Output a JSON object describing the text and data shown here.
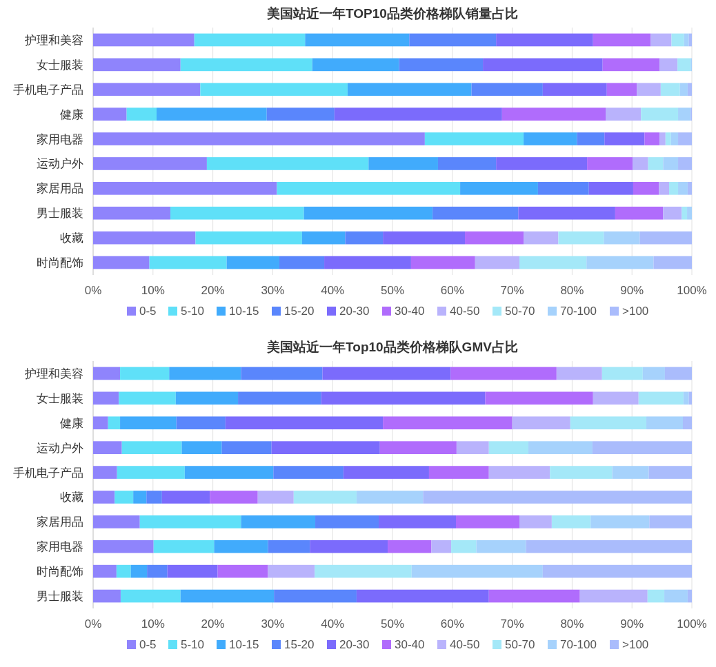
{
  "chart_data": [
    {
      "type": "bar",
      "title": "美国站近一年TOP10品类价格梯队销量占比",
      "orientation": "horizontal",
      "stacked": true,
      "grid": "x",
      "legend": "bottom",
      "categories": [
        "护理和美容",
        "女士服装",
        "手机电子产品",
        "健康",
        "家用电器",
        "运动户外",
        "家居用品",
        "男士服装",
        "收藏",
        "时尚配饰"
      ],
      "xlim": [
        0,
        100
      ],
      "xticks": [
        {
          "value": 0,
          "label": "0%"
        },
        {
          "value": 10,
          "label": "10%"
        },
        {
          "value": 20,
          "label": "20%"
        },
        {
          "value": 30,
          "label": "30%"
        },
        {
          "value": 40,
          "label": "40%"
        },
        {
          "value": 50,
          "label": "50%"
        },
        {
          "value": 60,
          "label": "60%"
        },
        {
          "value": 70,
          "label": "70%"
        },
        {
          "value": 80,
          "label": "80%"
        },
        {
          "value": 90,
          "label": "90%"
        },
        {
          "value": 100,
          "label": "100%"
        }
      ],
      "series": [
        {
          "name": "0-5",
          "color": "#8f84fc",
          "values": [
            16.9,
            14.6,
            17.9,
            5.6,
            55.4,
            19.0,
            30.7,
            12.9,
            17.1,
            9.4
          ]
        },
        {
          "name": "5-10",
          "color": "#5fe0f8",
          "values": [
            18.5,
            22.0,
            24.6,
            5.0,
            16.5,
            27.0,
            30.6,
            22.3,
            17.8,
            12.9
          ]
        },
        {
          "name": "10-15",
          "color": "#41abfc",
          "values": [
            17.4,
            14.5,
            20.7,
            18.4,
            8.9,
            11.6,
            13.0,
            21.5,
            7.2,
            8.8
          ]
        },
        {
          "name": "15-20",
          "color": "#5a86fc",
          "values": [
            14.5,
            14.0,
            11.9,
            11.3,
            4.6,
            9.7,
            8.5,
            14.3,
            6.3,
            7.5
          ]
        },
        {
          "name": "20-30",
          "color": "#7b6bfc",
          "values": [
            16.2,
            20.0,
            10.7,
            28.0,
            6.7,
            15.2,
            7.4,
            16.2,
            13.7,
            14.5
          ]
        },
        {
          "name": "30-40",
          "color": "#b06cfc",
          "values": [
            9.6,
            9.5,
            5.0,
            17.3,
            2.5,
            7.6,
            4.3,
            8.0,
            9.8,
            10.7
          ]
        },
        {
          "name": "40-50",
          "color": "#b9b3fc",
          "values": [
            3.5,
            3.0,
            4.0,
            5.9,
            1.0,
            2.6,
            1.7,
            3.1,
            5.8,
            7.4
          ]
        },
        {
          "name": "50-70",
          "color": "#a4e8f8",
          "values": [
            2.1,
            2.2,
            3.2,
            6.2,
            0.9,
            2.5,
            1.5,
            0.9,
            7.6,
            11.2
          ]
        },
        {
          "name": "70-100",
          "color": "#a6d2fc",
          "values": [
            0.8,
            0.2,
            1.3,
            2.1,
            1.2,
            2.5,
            1.6,
            0.8,
            6.0,
            11.2
          ]
        },
        {
          "name": ">100",
          "color": "#aabcfc",
          "values": [
            0.5,
            0,
            0.7,
            0.2,
            2.3,
            2.3,
            0.7,
            0,
            8.7,
            6.4
          ]
        }
      ]
    },
    {
      "type": "bar",
      "title": "美国站近一年Top10品类价格梯队GMV占比",
      "orientation": "horizontal",
      "stacked": true,
      "grid": "x",
      "legend": "bottom",
      "categories": [
        "护理和美容",
        "女士服装",
        "健康",
        "运动户外",
        "手机电子产品",
        "收藏",
        "家居用品",
        "家用电器",
        "时尚配饰",
        "男士服装"
      ],
      "xlim": [
        0,
        100
      ],
      "xticks": [
        {
          "value": 0,
          "label": "0%"
        },
        {
          "value": 10,
          "label": "10%"
        },
        {
          "value": 20,
          "label": "20%"
        },
        {
          "value": 30,
          "label": "30%"
        },
        {
          "value": 40,
          "label": "40%"
        },
        {
          "value": 50,
          "label": "50%"
        },
        {
          "value": 60,
          "label": "60%"
        },
        {
          "value": 70,
          "label": "70%"
        },
        {
          "value": 80,
          "label": "80%"
        },
        {
          "value": 90,
          "label": "90%"
        },
        {
          "value": 100,
          "label": "100%"
        }
      ],
      "series": [
        {
          "name": "0-5",
          "color": "#8f84fc",
          "values": [
            4.5,
            4.3,
            2.5,
            4.8,
            4.0,
            3.6,
            7.8,
            10.1,
            3.9,
            4.6
          ]
        },
        {
          "name": "5-10",
          "color": "#5fe0f8",
          "values": [
            8.2,
            9.5,
            2.0,
            10.0,
            11.3,
            3.1,
            16.9,
            10.1,
            2.4,
            10.0
          ]
        },
        {
          "name": "10-15",
          "color": "#41abfc",
          "values": [
            12.0,
            10.4,
            9.4,
            6.7,
            14.8,
            2.2,
            12.4,
            9.0,
            2.7,
            15.6
          ]
        },
        {
          "name": "15-20",
          "color": "#5a86fc",
          "values": [
            13.6,
            13.9,
            8.2,
            8.3,
            11.7,
            2.6,
            10.6,
            7.0,
            3.4,
            13.8
          ]
        },
        {
          "name": "20-30",
          "color": "#7b6bfc",
          "values": [
            21.4,
            27.4,
            26.3,
            18.1,
            14.3,
            8.0,
            12.9,
            13.0,
            8.4,
            22.1
          ]
        },
        {
          "name": "30-40",
          "color": "#b06cfc",
          "values": [
            17.7,
            18.0,
            21.6,
            12.8,
            10.0,
            8.0,
            10.6,
            7.3,
            8.4,
            15.2
          ]
        },
        {
          "name": "40-50",
          "color": "#b9b3fc",
          "values": [
            7.6,
            7.6,
            9.7,
            5.4,
            10.2,
            6.0,
            5.4,
            3.3,
            7.8,
            11.3
          ]
        },
        {
          "name": "50-70",
          "color": "#a4e8f8",
          "values": [
            6.8,
            7.5,
            12.7,
            6.6,
            10.4,
            10.5,
            6.5,
            4.2,
            16.2,
            2.8
          ]
        },
        {
          "name": "70-100",
          "color": "#a6d2fc",
          "values": [
            3.7,
            0.9,
            6.1,
            10.7,
            6.1,
            11.1,
            9.8,
            8.3,
            21.9,
            3.9
          ]
        },
        {
          "name": ">100",
          "color": "#aabcfc",
          "values": [
            4.5,
            0.5,
            1.5,
            16.6,
            7.2,
            44.9,
            7.1,
            27.7,
            24.9,
            0.7
          ]
        }
      ]
    }
  ]
}
